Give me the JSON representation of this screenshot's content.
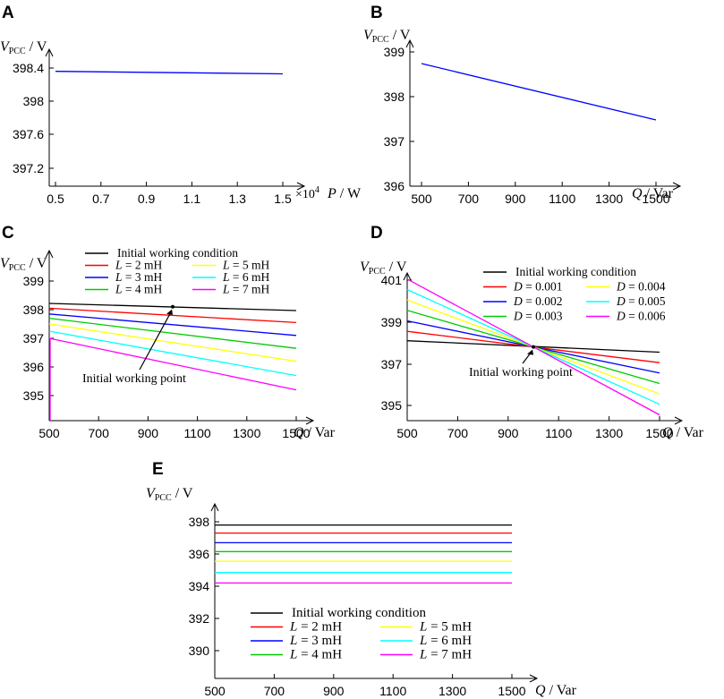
{
  "chart_data": [
    {
      "id": "A",
      "type": "line",
      "panel_label": "A",
      "ylabel": "V",
      "ylabel_sub": "PCC",
      "ylabel_unit": "/ V",
      "xlabel": "P",
      "xlabel_unit": "/ W",
      "x_multiplier": "×10",
      "x_multiplier_exp": "4",
      "xlim": [
        0.5,
        1.58
      ],
      "ylim": [
        397.0,
        398.55
      ],
      "xticks": [
        "0.5",
        "0.7",
        "0.9",
        "1.1",
        "1.3",
        "1.5"
      ],
      "yticks": [
        "397.2",
        "397.6",
        "398",
        "398.4"
      ],
      "series": [
        {
          "name": "V_PCC",
          "color": "#0000ff",
          "x": [
            0.5,
            1.5
          ],
          "y": [
            398.36,
            398.33
          ]
        }
      ]
    },
    {
      "id": "B",
      "type": "line",
      "panel_label": "B",
      "ylabel": "V",
      "ylabel_sub": "PCC",
      "ylabel_unit": "/ V",
      "xlabel": "Q",
      "xlabel_unit": "/ Var",
      "xlim": [
        470,
        1530
      ],
      "ylim": [
        396,
        399.2
      ],
      "xticks": [
        "500",
        "700",
        "900",
        "1100",
        "1300",
        "1500"
      ],
      "yticks": [
        "396",
        "397",
        "398",
        "399"
      ],
      "series": [
        {
          "name": "V_PCC",
          "color": "#0000ff",
          "x": [
            500,
            1500
          ],
          "y": [
            398.74,
            397.48
          ]
        }
      ]
    },
    {
      "id": "C",
      "type": "line",
      "panel_label": "C",
      "ylabel": "V",
      "ylabel_sub": "PCC",
      "ylabel_unit": "/ V",
      "xlabel": "Q",
      "xlabel_unit": "/ Var",
      "xlim": [
        500,
        1530
      ],
      "ylim": [
        394.4,
        399.3
      ],
      "xticks": [
        "500",
        "700",
        "900",
        "1100",
        "1300",
        "1500"
      ],
      "yticks": [
        "395",
        "396",
        "397",
        "398",
        "399"
      ],
      "annotation": "Initial working point",
      "annotation_point": [
        1000,
        398.1
      ],
      "series": [
        {
          "name": "Initial working condition",
          "color": "#000000",
          "x": [
            500,
            1500
          ],
          "y": [
            398.22,
            397.97
          ]
        },
        {
          "name": "L = 2 mH",
          "var": "L",
          "value": "= 2 mH",
          "color": "#ff0000",
          "x": [
            500,
            1500
          ],
          "y": [
            398.05,
            397.55
          ]
        },
        {
          "name": "L = 3 mH",
          "var": "L",
          "value": "= 3 mH",
          "color": "#0000ff",
          "x": [
            500,
            1500
          ],
          "y": [
            397.85,
            397.1
          ]
        },
        {
          "name": "L = 4 mH",
          "var": "L",
          "value": "= 4 mH",
          "color": "#00cc00",
          "x": [
            500,
            1500
          ],
          "y": [
            397.7,
            396.65
          ]
        },
        {
          "name": "L = 5 mH",
          "var": "L",
          "value": "= 5 mH",
          "color": "#ffff00",
          "x": [
            500,
            1500
          ],
          "y": [
            397.5,
            396.2
          ]
        },
        {
          "name": "L = 6 mH",
          "var": "L",
          "value": "= 6 mH",
          "color": "#00ffff",
          "x": [
            500,
            1500
          ],
          "y": [
            397.25,
            395.7
          ]
        },
        {
          "name": "L = 7 mH",
          "var": "L",
          "value": "= 7 mH",
          "color": "#ff00ff",
          "x": [
            500,
            1500
          ],
          "y": [
            397.0,
            395.2
          ]
        }
      ]
    },
    {
      "id": "D",
      "type": "line",
      "panel_label": "D",
      "ylabel": "V",
      "ylabel_sub": "PCC",
      "ylabel_unit": "/ V",
      "xlabel": "Q",
      "xlabel_unit": "/ Var",
      "xlim": [
        500,
        1530
      ],
      "ylim": [
        394.2,
        401.3
      ],
      "xticks": [
        "500",
        "700",
        "900",
        "1100",
        "1300",
        "1500"
      ],
      "yticks": [
        "395",
        "397",
        "399",
        "401"
      ],
      "annotation": "Initial working point",
      "annotation_point": [
        1000,
        397.8
      ],
      "series": [
        {
          "name": "Initial working condition",
          "color": "#000000",
          "x": [
            500,
            1500
          ],
          "y": [
            398.1,
            397.55
          ]
        },
        {
          "name": "D = 0.001",
          "var": "D",
          "value": "= 0.001",
          "color": "#ff0000",
          "x": [
            500,
            1500
          ],
          "y": [
            398.55,
            397.05
          ]
        },
        {
          "name": "D = 0.002",
          "var": "D",
          "value": "= 0.002",
          "color": "#0000ff",
          "x": [
            500,
            1500
          ],
          "y": [
            399.05,
            396.55
          ]
        },
        {
          "name": "D = 0.003",
          "var": "D",
          "value": "= 0.003",
          "color": "#00cc00",
          "x": [
            500,
            1500
          ],
          "y": [
            399.55,
            396.05
          ]
        },
        {
          "name": "D = 0.004",
          "var": "D",
          "value": "= 0.004",
          "color": "#ffff00",
          "x": [
            500,
            1500
          ],
          "y": [
            400.05,
            395.55
          ]
        },
        {
          "name": "D = 0.005",
          "var": "D",
          "value": "= 0.005",
          "color": "#00ffff",
          "x": [
            500,
            1500
          ],
          "y": [
            400.55,
            395.05
          ]
        },
        {
          "name": "D = 0.006",
          "var": "D",
          "value": "= 0.006",
          "color": "#ff00ff",
          "x": [
            500,
            1500
          ],
          "y": [
            401.05,
            394.55
          ]
        }
      ]
    },
    {
      "id": "E",
      "type": "line",
      "panel_label": "E",
      "ylabel": "V",
      "ylabel_sub": "PCC",
      "ylabel_unit": "/ V",
      "xlabel": "Q",
      "xlabel_unit": "/ Var",
      "xlim": [
        500,
        1560
      ],
      "ylim": [
        388.9,
        399.2
      ],
      "xticks": [
        "500",
        "700",
        "900",
        "1100",
        "1300",
        "1500"
      ],
      "yticks": [
        "390",
        "392",
        "394",
        "396",
        "398"
      ],
      "series": [
        {
          "name": "Initial working condition",
          "color": "#000000",
          "x": [
            500,
            1500
          ],
          "y": [
            397.8,
            397.8
          ]
        },
        {
          "name": "L = 2 mH",
          "var": "L",
          "value": "= 2 mH",
          "color": "#ff0000",
          "x": [
            500,
            1500
          ],
          "y": [
            397.3,
            397.3
          ]
        },
        {
          "name": "L = 3 mH",
          "var": "L",
          "value": "= 3 mH",
          "color": "#0000ff",
          "x": [
            500,
            1500
          ],
          "y": [
            396.7,
            396.7
          ]
        },
        {
          "name": "L = 4 mH",
          "var": "L",
          "value": "= 4 mH",
          "color": "#00cc00",
          "x": [
            500,
            1500
          ],
          "y": [
            396.15,
            396.15
          ]
        },
        {
          "name": "L = 5 mH",
          "var": "L",
          "value": "= 5 mH",
          "color": "#ffff00",
          "x": [
            500,
            1500
          ],
          "y": [
            395.55,
            395.55
          ]
        },
        {
          "name": "L = 6 mH",
          "var": "L",
          "value": "= 6 mH",
          "color": "#00ffff",
          "x": [
            500,
            1500
          ],
          "y": [
            394.85,
            394.85
          ]
        },
        {
          "name": "L = 7 mH",
          "var": "L",
          "value": "= 7 mH",
          "color": "#ff00ff",
          "x": [
            500,
            1500
          ],
          "y": [
            394.2,
            394.2
          ]
        }
      ]
    }
  ]
}
